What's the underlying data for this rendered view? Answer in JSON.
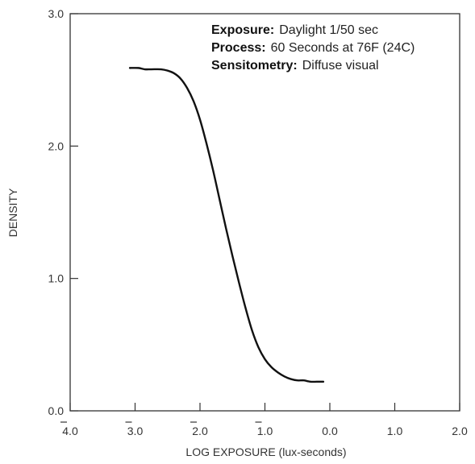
{
  "chart_data": {
    "type": "line",
    "xlabel": "LOG EXPOSURE (lux-seconds)",
    "ylabel": "DENSITY",
    "xlim": [
      -4.0,
      2.0
    ],
    "ylim": [
      0.0,
      3.0
    ],
    "grid": false,
    "x_ticks": [
      {
        "value": -4.0,
        "label": "4.0",
        "bar": true
      },
      {
        "value": -3.0,
        "label": "3.0",
        "bar": true
      },
      {
        "value": -2.0,
        "label": "2.0",
        "bar": true
      },
      {
        "value": -1.0,
        "label": "1.0",
        "bar": true
      },
      {
        "value": 0.0,
        "label": "0.0",
        "bar": false
      },
      {
        "value": 1.0,
        "label": "1.0",
        "bar": false
      },
      {
        "value": 2.0,
        "label": "2.0",
        "bar": false
      }
    ],
    "y_ticks": [
      {
        "value": 0.0,
        "label": "0.0"
      },
      {
        "value": 1.0,
        "label": "1.0"
      },
      {
        "value": 2.0,
        "label": "2.0"
      },
      {
        "value": 3.0,
        "label": "3.0"
      }
    ],
    "annotations": [
      {
        "label": "Exposure:",
        "value": "Daylight 1/50 sec"
      },
      {
        "label": "Process:",
        "value": "60 Seconds at 76F (24C)"
      },
      {
        "label": "Sensitometry:",
        "value": "Diffuse visual"
      }
    ],
    "series": [
      {
        "x": [
          -3.08,
          -2.95,
          -2.85,
          -2.75,
          -2.6,
          -2.5,
          -2.4,
          -2.3,
          -2.2,
          -2.1,
          -2.0,
          -1.9,
          -1.8,
          -1.7,
          -1.6,
          -1.5,
          -1.4,
          -1.3,
          -1.2,
          -1.1,
          -1.0,
          -0.9,
          -0.8,
          -0.7,
          -0.6,
          -0.5,
          -0.4,
          -0.3,
          -0.2,
          -0.1
        ],
        "y": [
          2.59,
          2.59,
          2.58,
          2.58,
          2.58,
          2.57,
          2.55,
          2.51,
          2.44,
          2.34,
          2.2,
          2.02,
          1.82,
          1.6,
          1.38,
          1.17,
          0.97,
          0.78,
          0.61,
          0.48,
          0.39,
          0.33,
          0.29,
          0.26,
          0.24,
          0.23,
          0.23,
          0.22,
          0.22,
          0.22
        ]
      }
    ],
    "colors": {
      "line": "#111111",
      "axis": "#333333"
    }
  }
}
